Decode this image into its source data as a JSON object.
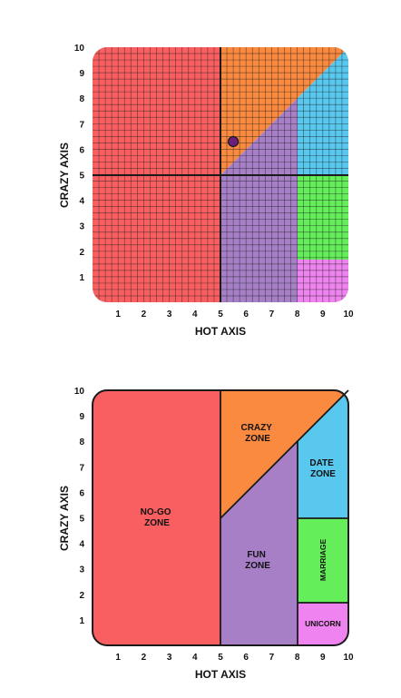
{
  "colors": {
    "no_go": "#f95f61",
    "crazy": "#fa8a3f",
    "fun": "#a67fc7",
    "date": "#58c8ef",
    "marriage": "#63ee5a",
    "unicorn": "#ef83ef",
    "grid_line": "#1a1a1a",
    "outline": "#1a1a1a",
    "marker": "#6b1f78"
  },
  "top_chart": {
    "x_axis_title": "HOT AXIS",
    "y_axis_title": "CRAZY AXIS",
    "x_ticks": [
      "1",
      "2",
      "3",
      "4",
      "5",
      "6",
      "7",
      "8",
      "9",
      "10"
    ],
    "y_ticks": [
      "1",
      "2",
      "3",
      "4",
      "5",
      "6",
      "7",
      "8",
      "9",
      "10"
    ],
    "grid": true,
    "point": {
      "hot": 5.5,
      "crazy": 6.3
    }
  },
  "bottom_chart": {
    "x_axis_title": "HOT AXIS",
    "y_axis_title": "CRAZY AXIS",
    "x_ticks": [
      "1",
      "2",
      "3",
      "4",
      "5",
      "6",
      "7",
      "8",
      "9",
      "10"
    ],
    "y_ticks": [
      "1",
      "2",
      "3",
      "4",
      "5",
      "6",
      "7",
      "8",
      "9",
      "10"
    ],
    "zones": {
      "no_go": {
        "line1": "NO-GO",
        "line2": "ZONE"
      },
      "crazy": {
        "line1": "CRAZY",
        "line2": "ZONE"
      },
      "fun": {
        "line1": "FUN",
        "line2": "ZONE"
      },
      "date": {
        "line1": "DATE",
        "line2": "ZONE"
      },
      "marriage": {
        "label": "MARRIAGE"
      },
      "unicorn": {
        "label": "UNICORN"
      }
    }
  }
}
